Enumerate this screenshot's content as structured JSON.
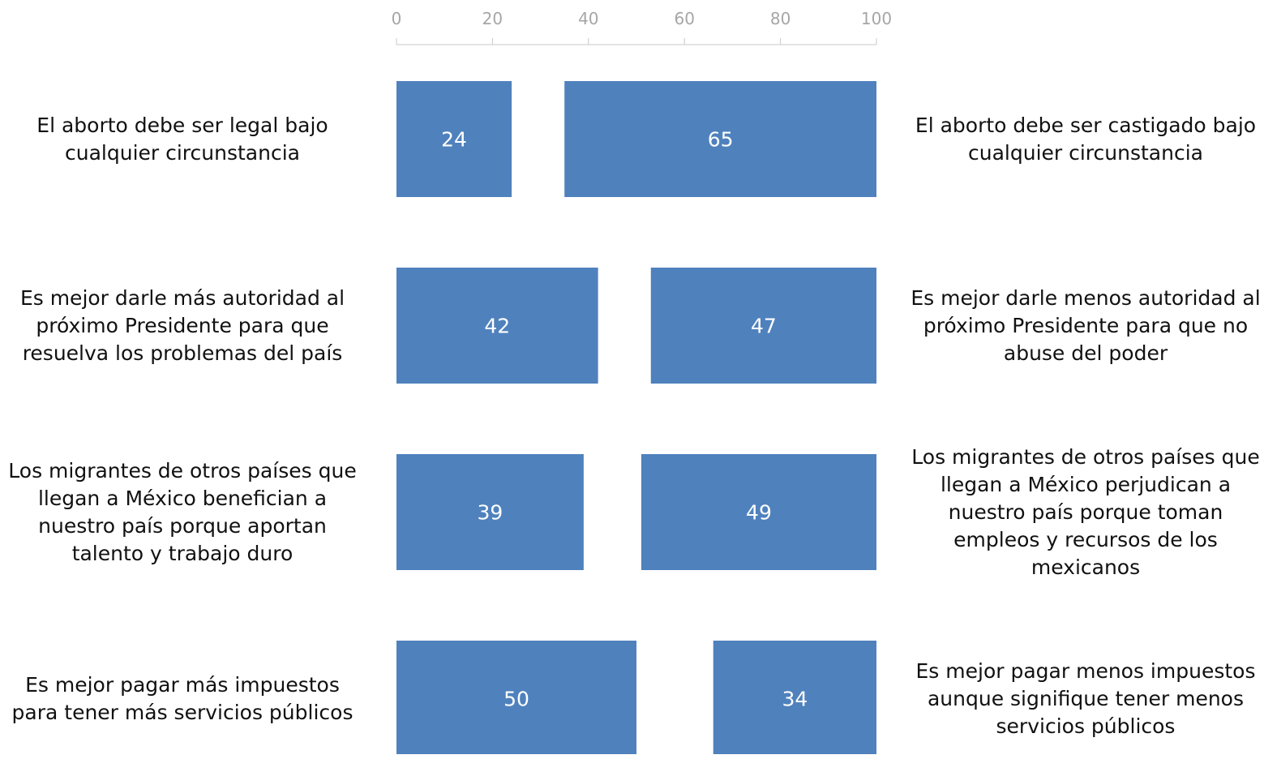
{
  "chart_data": {
    "type": "bar",
    "orientation": "horizontal",
    "layout": "paired-diverging",
    "xlim": [
      0,
      100
    ],
    "xticks": [
      0,
      20,
      40,
      60,
      80,
      100
    ],
    "tick_labels": [
      "0",
      "20",
      "40",
      "60",
      "80",
      "100"
    ],
    "axis_position": "top",
    "grid": false,
    "legend": "none",
    "bar_color": "#4f81bd",
    "rows": [
      {
        "left_statement": "El aborto debe ser legal bajo cualquier circunstancia",
        "right_statement": "El aborto debe ser castigado bajo cualquier circunstancia",
        "left_value": 24,
        "right_value": 65
      },
      {
        "left_statement": "Es mejor darle más autoridad al próximo Presidente para que resuelva los problemas del país",
        "right_statement": "Es mejor darle menos autoridad al próximo Presidente para que no abuse del poder",
        "left_value": 42,
        "right_value": 47
      },
      {
        "left_statement": "Los migrantes de otros países que llegan a México benefician a nuestro país porque aportan talento y trabajo duro",
        "right_statement": "Los migrantes de otros países que llegan a México perjudican a nuestro país porque toman empleos y recursos de los mexicanos",
        "left_value": 39,
        "right_value": 49
      },
      {
        "left_statement": "Es mejor pagar más impuestos para tener más servicios públicos",
        "right_statement": "Es mejor pagar menos impuestos aunque signifique tener menos servicios públicos",
        "left_value": 50,
        "right_value": 34
      }
    ]
  }
}
